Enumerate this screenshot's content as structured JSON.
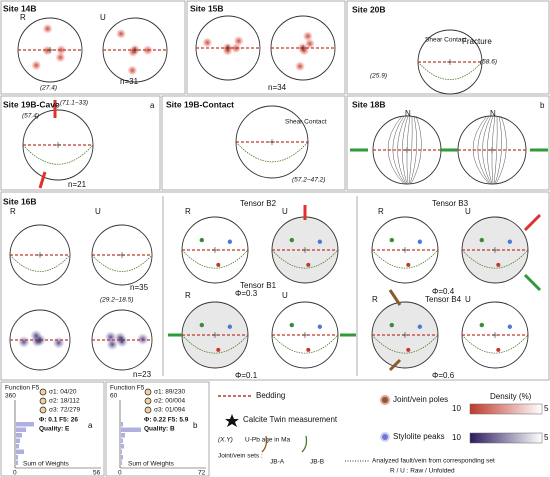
{
  "panels": [
    {
      "title": "Site 14B",
      "labels": [
        "R",
        "U",
        "(27.4)",
        "n=31"
      ]
    },
    {
      "title": "Site 15B",
      "labels": [
        "n=34"
      ]
    },
    {
      "title": "Site 20B",
      "labels": [
        "Shear Contact",
        "Fracture",
        "(25.9)",
        "(58.6)"
      ]
    },
    {
      "title": "Site 19B-Cave",
      "labels": [
        "a",
        "(71.1−33)",
        "(57.4)",
        "n=21"
      ]
    },
    {
      "title": "Site 19B-Contact",
      "labels": [
        "Shear Contact",
        "(57.2−47.2)"
      ]
    },
    {
      "title": "Site 18B",
      "labels": [
        "b",
        "N",
        "N"
      ]
    },
    {
      "title": "Site 16B",
      "labels": [
        "R",
        "U",
        "n=35",
        "(29.2−18.5)",
        "n=23"
      ]
    },
    {
      "title": "Tensor B2",
      "labels": [
        "R",
        "U",
        "Φ=0.3"
      ]
    },
    {
      "title": "Tensor B1",
      "labels": [
        "R",
        "U",
        "Φ=0.1"
      ]
    },
    {
      "title": "Tensor B3",
      "labels": [
        "R",
        "U",
        "Φ=0.4"
      ]
    },
    {
      "title": "Tensor B4",
      "labels": [
        "R",
        "U",
        "Φ=0.6"
      ]
    }
  ],
  "rose": [
    {
      "function": "Function F5",
      "ytick": "360",
      "stress": [
        "σ1: 04/20",
        "σ2: 18/112",
        "σ3: 72/279"
      ],
      "stats": "Φ: 0.1  F5: 26",
      "quality": "Quality: E",
      "xlabel": "Sum of Weights",
      "xmin": "0",
      "xmax": "56",
      "tag": "a"
    },
    {
      "function": "Function F5",
      "ytick": "60",
      "stress": [
        "σ1: 89/230",
        "σ2: 00/004",
        "σ3: 01/094"
      ],
      "stats": "Φ: 0.22  F5: 5.9",
      "quality": "Quality: B",
      "xlabel": "Sum of Weights",
      "xmin": "0",
      "xmax": "72",
      "tag": "b"
    }
  ],
  "legend": {
    "bedding": "Bedding",
    "calcite": "Calcite Twin measurement",
    "age_code": "(X.Y)",
    "age": "U-Pb age in Ma",
    "sets": "Joint/vein sets :",
    "set_a": "JB-A",
    "set_b": "JB-B",
    "poles": "Joint/vein poles",
    "stylolite": "Stylolite peaks",
    "density": "Density (%)",
    "density_max": "10",
    "density_min": "5",
    "analyzed": "Analyzed fault/vein from corresponding set",
    "ru": "R / U : Raw / Unfolded"
  }
}
